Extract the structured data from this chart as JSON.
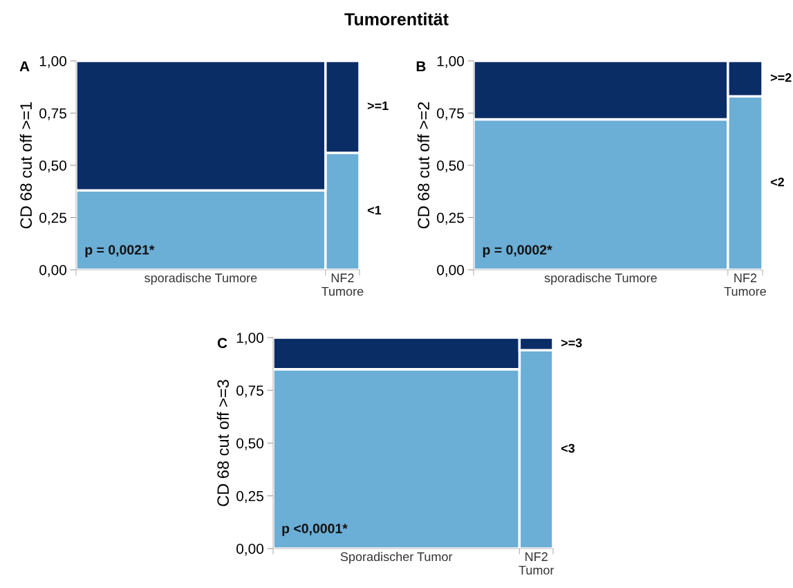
{
  "chart_data": [
    {
      "type": "bar",
      "stacked": true,
      "title": "Tumorentität",
      "ylabel": "CD 68 cut off >=1",
      "categories": [
        "sporadische Tumore",
        "NF2\nTumore"
      ],
      "series": [
        {
          "name": "<1",
          "color": "#6baed6",
          "values": [
            0.38,
            0.56
          ]
        },
        {
          "name": ">=1",
          "color": "#0a2d66",
          "values": [
            0.62,
            0.44
          ]
        }
      ],
      "ylim": [
        0,
        1
      ],
      "yticks": [
        {
          "value": 0,
          "label": "0,00"
        },
        {
          "value": 0.25,
          "label": "0,25"
        },
        {
          "value": 0.5,
          "label": "0,50"
        },
        {
          "value": 0.75,
          "label": "0,75"
        },
        {
          "value": 1,
          "label": "1,00"
        }
      ],
      "annotations": [
        "A",
        "p = 0,0021*"
      ],
      "grid": false,
      "legend": false
    },
    {
      "type": "bar",
      "stacked": true,
      "ylabel": "CD 68 cut off >=2",
      "categories": [
        "sporadische Tumore",
        "NF2\nTumore"
      ],
      "series": [
        {
          "name": "<2",
          "color": "#6baed6",
          "values": [
            0.72,
            0.83
          ]
        },
        {
          "name": ">=2",
          "color": "#0a2d66",
          "values": [
            0.28,
            0.17
          ]
        }
      ],
      "ylim": [
        0,
        1
      ],
      "yticks": [
        {
          "value": 0,
          "label": "0,00"
        },
        {
          "value": 0.25,
          "label": "0,25"
        },
        {
          "value": 0.5,
          "label": "0,50"
        },
        {
          "value": 0.75,
          "label": "0,75"
        },
        {
          "value": 1,
          "label": "1,00"
        }
      ],
      "annotations": [
        "B",
        "p = 0,0002*"
      ],
      "grid": false,
      "legend": false
    },
    {
      "type": "bar",
      "stacked": true,
      "ylabel": "CD 68 cut off >=3",
      "categories": [
        "Sporadischer Tumor",
        "NF2\nTumor"
      ],
      "series": [
        {
          "name": "<3",
          "color": "#6baed6",
          "values": [
            0.85,
            0.94
          ]
        },
        {
          "name": ">=3",
          "color": "#0a2d66",
          "values": [
            0.15,
            0.06
          ]
        }
      ],
      "ylim": [
        0,
        1
      ],
      "yticks": [
        {
          "value": 0,
          "label": "0,00"
        },
        {
          "value": 0.25,
          "label": "0,25"
        },
        {
          "value": 0.5,
          "label": "0,50"
        },
        {
          "value": 0.75,
          "label": "0,75"
        },
        {
          "value": 1,
          "label": "1,00"
        }
      ],
      "annotations": [
        "C",
        "p <0,0001*"
      ],
      "grid": false,
      "legend": false
    }
  ]
}
